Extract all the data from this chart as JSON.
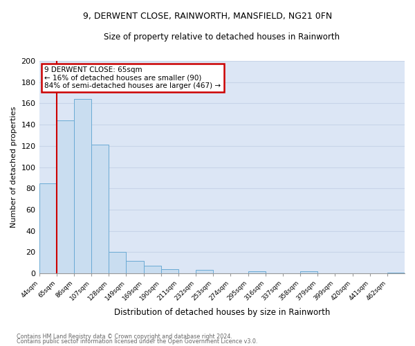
{
  "title": "9, DERWENT CLOSE, RAINWORTH, MANSFIELD, NG21 0FN",
  "subtitle": "Size of property relative to detached houses in Rainworth",
  "xlabel": "Distribution of detached houses by size in Rainworth",
  "ylabel": "Number of detached properties",
  "bin_labels": [
    "44sqm",
    "65sqm",
    "86sqm",
    "107sqm",
    "128sqm",
    "149sqm",
    "169sqm",
    "190sqm",
    "211sqm",
    "232sqm",
    "253sqm",
    "274sqm",
    "295sqm",
    "316sqm",
    "337sqm",
    "358sqm",
    "379sqm",
    "399sqm",
    "420sqm",
    "441sqm",
    "462sqm"
  ],
  "bar_heights": [
    85,
    144,
    164,
    121,
    20,
    12,
    7,
    4,
    0,
    3,
    0,
    0,
    2,
    0,
    0,
    2,
    0,
    0,
    0,
    0,
    1
  ],
  "bar_color": "#c9ddf0",
  "bar_edge_color": "#6aaad4",
  "property_line_x": 1,
  "annotation_title": "9 DERWENT CLOSE: 65sqm",
  "annotation_line1": "← 16% of detached houses are smaller (90)",
  "annotation_line2": "84% of semi-detached houses are larger (467) →",
  "annotation_box_color": "#ffffff",
  "annotation_box_edge_color": "#cc0000",
  "vline_color": "#cc0000",
  "ylim": [
    0,
    200
  ],
  "yticks": [
    0,
    20,
    40,
    60,
    80,
    100,
    120,
    140,
    160,
    180,
    200
  ],
  "grid_color": "#c8d4e8",
  "background_color": "#dce6f5",
  "footnote1": "Contains HM Land Registry data © Crown copyright and database right 2024.",
  "footnote2": "Contains public sector information licensed under the Open Government Licence v3.0."
}
